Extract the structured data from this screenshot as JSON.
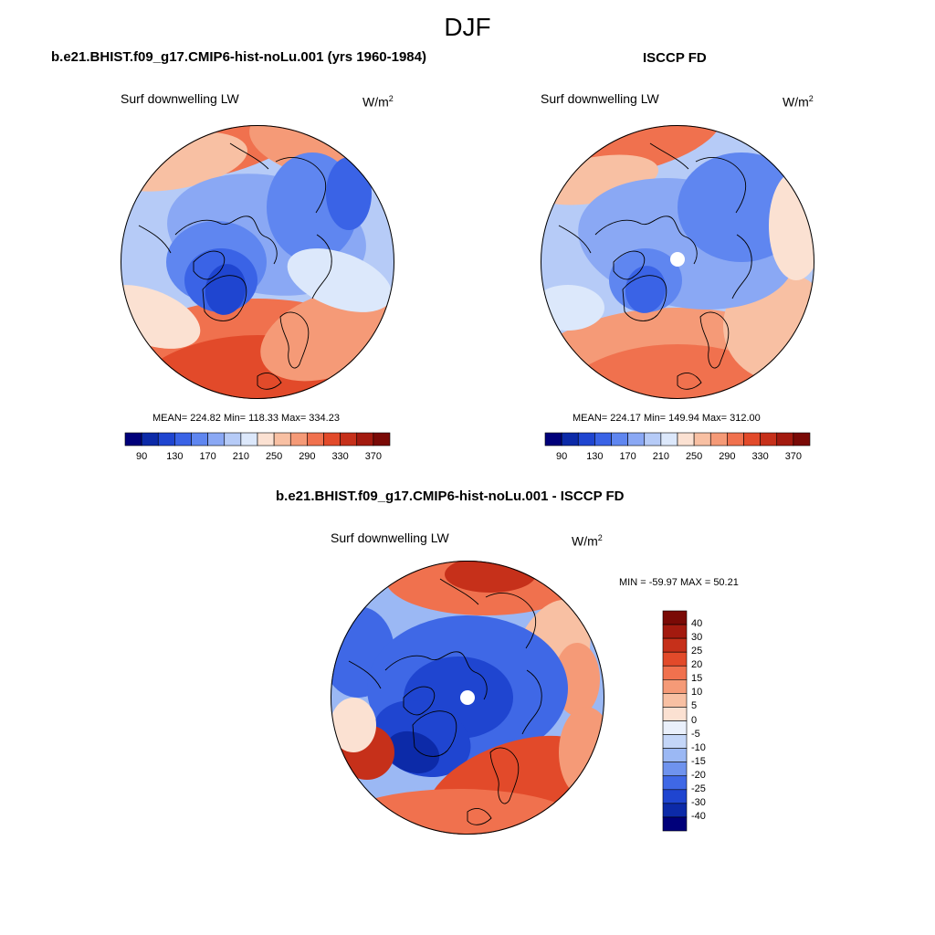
{
  "figure": {
    "season": "DJF",
    "left_panel": {
      "title": "b.e21.BHIST.f09_g17.CMIP6-hist-noLu.001 (yrs 1960-1984)",
      "variable": "Surf downwelling LW",
      "units": "W/m",
      "units_sup": "2",
      "stats": "MEAN= 224.82  Min= 118.33  Max= 334.23"
    },
    "right_panel": {
      "title": "ISCCP FD",
      "variable": "Surf downwelling LW",
      "units": "W/m",
      "units_sup": "2",
      "stats": "MEAN= 224.17  Min= 149.94  Max= 312.00"
    },
    "diff_panel": {
      "title": "b.e21.BHIST.f09_g17.CMIP6-hist-noLu.001 - ISCCP FD",
      "variable": "Surf downwelling LW",
      "units": "W/m",
      "units_sup": "2",
      "stats": "MIN = -59.97 MAX =  50.21"
    }
  },
  "chart_data": [
    {
      "type": "heatmap",
      "projection": "north polar stereographic",
      "title": "b.e21.BHIST.f09_g17.CMIP6-hist-noLu.001 (yrs 1960-1984)",
      "variable": "Surf downwelling LW",
      "units": "W/m2",
      "mean": 224.82,
      "min": 118.33,
      "max": 334.23,
      "colorbar_levels": [
        90,
        130,
        170,
        210,
        250,
        290,
        330,
        370
      ],
      "colorbar_orientation": "horizontal",
      "colorbar_colors": [
        "#00007a",
        "#0c2aa8",
        "#1f45d0",
        "#3a63e6",
        "#5f86f0",
        "#8aa8f4",
        "#b6cbf7",
        "#dce8fb",
        "#fbe1d2",
        "#f8c0a3",
        "#f59a77",
        "#f0714e",
        "#e24a2a",
        "#c6301a",
        "#a31a0f",
        "#7a0a06"
      ]
    },
    {
      "type": "heatmap",
      "projection": "north polar stereographic",
      "title": "ISCCP FD",
      "variable": "Surf downwelling LW",
      "units": "W/m2",
      "mean": 224.17,
      "min": 149.94,
      "max": 312.0,
      "colorbar_levels": [
        90,
        130,
        170,
        210,
        250,
        290,
        330,
        370
      ],
      "colorbar_orientation": "horizontal",
      "colorbar_colors": [
        "#00007a",
        "#0c2aa8",
        "#1f45d0",
        "#3a63e6",
        "#5f86f0",
        "#8aa8f4",
        "#b6cbf7",
        "#dce8fb",
        "#fbe1d2",
        "#f8c0a3",
        "#f59a77",
        "#f0714e",
        "#e24a2a",
        "#c6301a",
        "#a31a0f",
        "#7a0a06"
      ]
    },
    {
      "type": "heatmap",
      "projection": "north polar stereographic",
      "title": "b.e21.BHIST.f09_g17.CMIP6-hist-noLu.001 - ISCCP FD",
      "variable": "Surf downwelling LW",
      "units": "W/m2",
      "min": -59.97,
      "max": 50.21,
      "colorbar_levels": [
        "40",
        "30",
        "25",
        "20",
        "15",
        "10",
        "5",
        "0",
        "-5",
        "-10",
        "-15",
        "-20",
        "-25",
        "-30",
        "-40"
      ],
      "colorbar_orientation": "vertical",
      "colorbar_colors": [
        "#7a0a06",
        "#a31a0f",
        "#c6301a",
        "#e24a2a",
        "#f0714e",
        "#f59a77",
        "#f8c0a3",
        "#fbe1d2",
        "#eaf0fb",
        "#c4d6f8",
        "#9bb8f4",
        "#6f93ee",
        "#3f68e6",
        "#1f45d0",
        "#0c2aa8",
        "#00007a"
      ]
    }
  ]
}
